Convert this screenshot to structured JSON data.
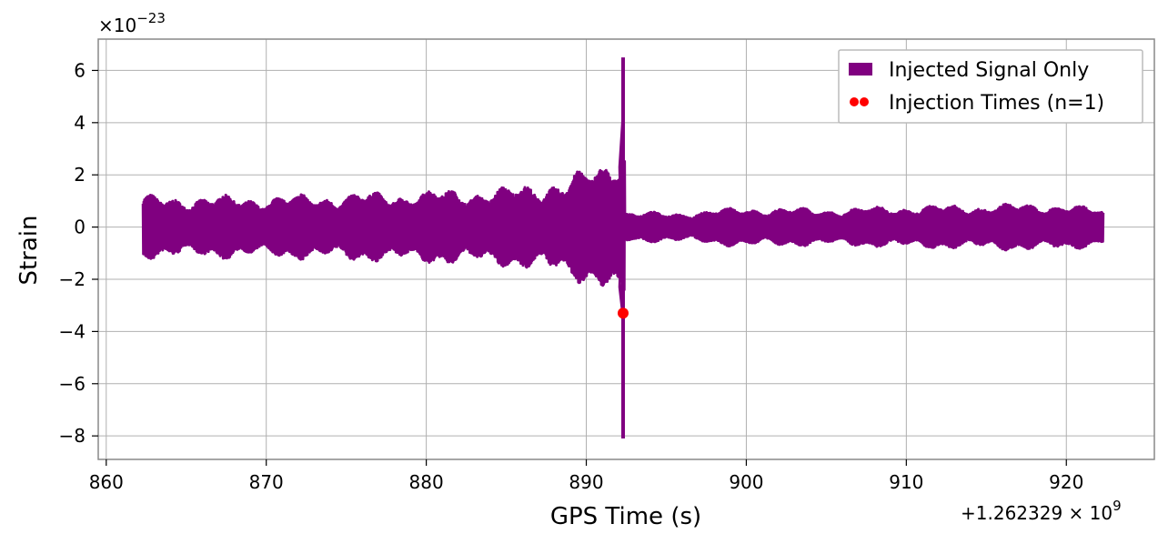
{
  "chart_data": {
    "type": "line",
    "xlabel": "GPS Time (s)",
    "ylabel": "Strain",
    "x_offset_label": "+1.262329 × 10",
    "x_offset_exponent": "9",
    "y_scale_label": "×10",
    "y_scale_exponent": "−23",
    "xlim": [
      859.5,
      925.5
    ],
    "ylim": [
      -8.9,
      7.2
    ],
    "x_ticks": [
      860,
      870,
      880,
      890,
      900,
      910,
      920
    ],
    "x_tick_labels": [
      "860",
      "870",
      "880",
      "890",
      "900",
      "910",
      "920"
    ],
    "y_ticks": [
      6,
      4,
      2,
      0,
      -2,
      -4,
      -6,
      -8
    ],
    "y_tick_labels": [
      "6",
      "4",
      "2",
      "0",
      "−2",
      "−4",
      "−6",
      "−8"
    ],
    "grid": true,
    "legend_position": "top-right",
    "series": [
      {
        "name": "Injected Signal Only",
        "color": "#800080",
        "envelope": {
          "t_start": 862.3,
          "t_merger": 892.3,
          "t_end": 922.3,
          "pre_merger_amplitude": [
            [
              862.3,
              1.1
            ],
            [
              870,
              1.1
            ],
            [
              880,
              1.3
            ],
            [
              885,
              1.4
            ],
            [
              889,
              1.8
            ],
            [
              891,
              2.3
            ],
            [
              892.0,
              3.0
            ]
          ],
          "post_merger_amplitude": [
            [
              892.4,
              0.55
            ],
            [
              895,
              0.5
            ],
            [
              900,
              0.7
            ],
            [
              905,
              0.65
            ],
            [
              910,
              0.75
            ],
            [
              915,
              0.8
            ],
            [
              920,
              0.85
            ],
            [
              922.3,
              0.6
            ]
          ],
          "peak_max": 6.5,
          "peak_min": -8.1
        }
      },
      {
        "name": "Injection Times (n=1)",
        "color": "#ff0000",
        "points": [
          [
            892.3,
            -3.3
          ]
        ]
      }
    ]
  }
}
